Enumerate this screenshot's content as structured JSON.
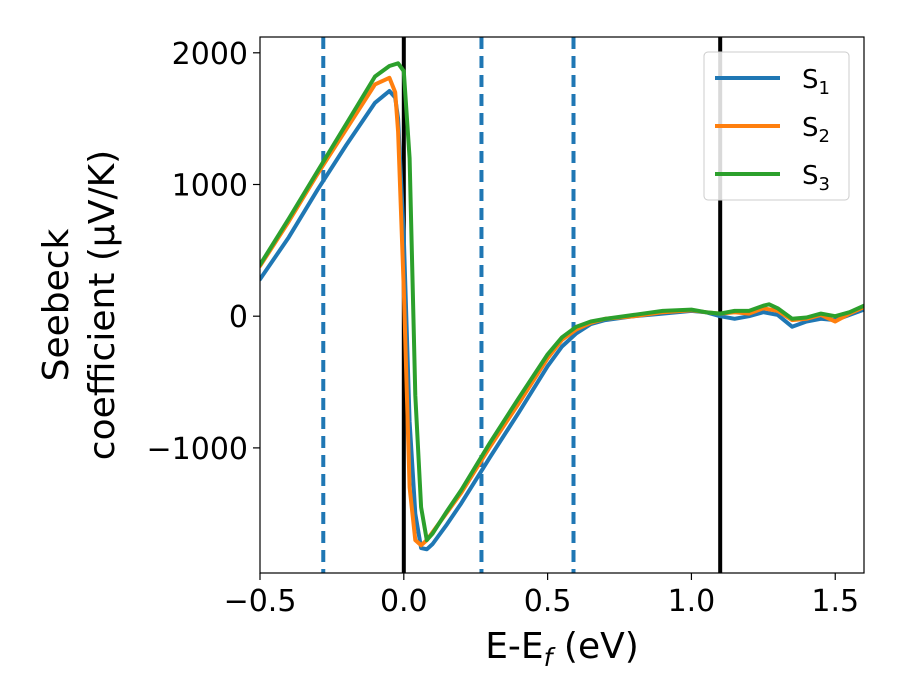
{
  "chart_data": {
    "type": "line",
    "xlabel": {
      "main": "E-E",
      "sub": "f",
      "tail": " (eV)"
    },
    "ylabel": {
      "line1": "Seebeck",
      "line2": "coefficient  (μV/K)"
    },
    "xlim": [
      -0.5,
      1.6
    ],
    "ylim": [
      -1950,
      2120
    ],
    "xticks": [
      {
        "value": -0.5,
        "label": "−0.5"
      },
      {
        "value": 0.0,
        "label": "0.0"
      },
      {
        "value": 0.5,
        "label": "0.5"
      },
      {
        "value": 1.0,
        "label": "1.0"
      },
      {
        "value": 1.5,
        "label": "1.5"
      }
    ],
    "yticks": [
      {
        "value": 2000,
        "label": "2000"
      },
      {
        "value": 1000,
        "label": "1000"
      },
      {
        "value": 0,
        "label": "0"
      },
      {
        "value": -1000,
        "label": "−1000"
      }
    ],
    "grid": false,
    "legend_position": "top-right",
    "vlines_solid": [
      0.0,
      1.1
    ],
    "vlines_dashed": [
      -0.28,
      0.27,
      0.59
    ],
    "vline_solid_color": "#000000",
    "vline_dashed_color": "#1f77b4",
    "series": [
      {
        "name": "S",
        "sub": "1",
        "color": "#1f77b4",
        "x": [
          -0.5,
          -0.4,
          -0.3,
          -0.2,
          -0.1,
          -0.05,
          -0.03,
          -0.02,
          0.0,
          0.02,
          0.04,
          0.06,
          0.08,
          0.1,
          0.15,
          0.2,
          0.3,
          0.4,
          0.5,
          0.55,
          0.6,
          0.65,
          0.7,
          0.8,
          0.9,
          1.0,
          1.05,
          1.1,
          1.15,
          1.2,
          1.25,
          1.3,
          1.35,
          1.4,
          1.45,
          1.5,
          1.55,
          1.6
        ],
        "y": [
          280,
          600,
          960,
          1300,
          1620,
          1710,
          1660,
          1500,
          600,
          -800,
          -1500,
          -1760,
          -1770,
          -1730,
          -1580,
          -1420,
          -1070,
          -730,
          -380,
          -230,
          -130,
          -60,
          -30,
          0,
          20,
          40,
          30,
          0,
          -20,
          0,
          30,
          10,
          -80,
          -40,
          -20,
          -30,
          10,
          50
        ]
      },
      {
        "name": "S",
        "sub": "2",
        "color": "#ff7f0e",
        "x": [
          -0.5,
          -0.4,
          -0.3,
          -0.2,
          -0.1,
          -0.05,
          -0.03,
          -0.02,
          0.0,
          0.02,
          0.04,
          0.06,
          0.08,
          0.1,
          0.15,
          0.2,
          0.3,
          0.4,
          0.5,
          0.55,
          0.6,
          0.65,
          0.7,
          0.8,
          0.9,
          1.0,
          1.05,
          1.1,
          1.15,
          1.2,
          1.25,
          1.3,
          1.35,
          1.4,
          1.45,
          1.5,
          1.55,
          1.6
        ],
        "y": [
          380,
          720,
          1080,
          1420,
          1760,
          1810,
          1700,
          1400,
          200,
          -1300,
          -1700,
          -1740,
          -1700,
          -1640,
          -1490,
          -1340,
          -990,
          -660,
          -320,
          -180,
          -100,
          -50,
          -20,
          0,
          30,
          45,
          30,
          20,
          30,
          20,
          60,
          40,
          -30,
          -20,
          10,
          -40,
          20,
          70
        ]
      },
      {
        "name": "S",
        "sub": "3",
        "color": "#2ca02c",
        "x": [
          -0.5,
          -0.4,
          -0.3,
          -0.2,
          -0.1,
          -0.05,
          -0.02,
          0.0,
          0.02,
          0.04,
          0.06,
          0.08,
          0.1,
          0.15,
          0.2,
          0.3,
          0.4,
          0.5,
          0.55,
          0.6,
          0.65,
          0.7,
          0.8,
          0.9,
          1.0,
          1.05,
          1.1,
          1.15,
          1.2,
          1.25,
          1.27,
          1.3,
          1.35,
          1.4,
          1.45,
          1.5,
          1.55,
          1.6
        ],
        "y": [
          390,
          740,
          1100,
          1460,
          1820,
          1900,
          1920,
          1860,
          1200,
          -600,
          -1450,
          -1700,
          -1650,
          -1480,
          -1320,
          -960,
          -620,
          -290,
          -160,
          -80,
          -40,
          -20,
          10,
          40,
          50,
          30,
          20,
          40,
          40,
          80,
          90,
          60,
          -20,
          -10,
          20,
          0,
          30,
          80
        ]
      }
    ]
  }
}
